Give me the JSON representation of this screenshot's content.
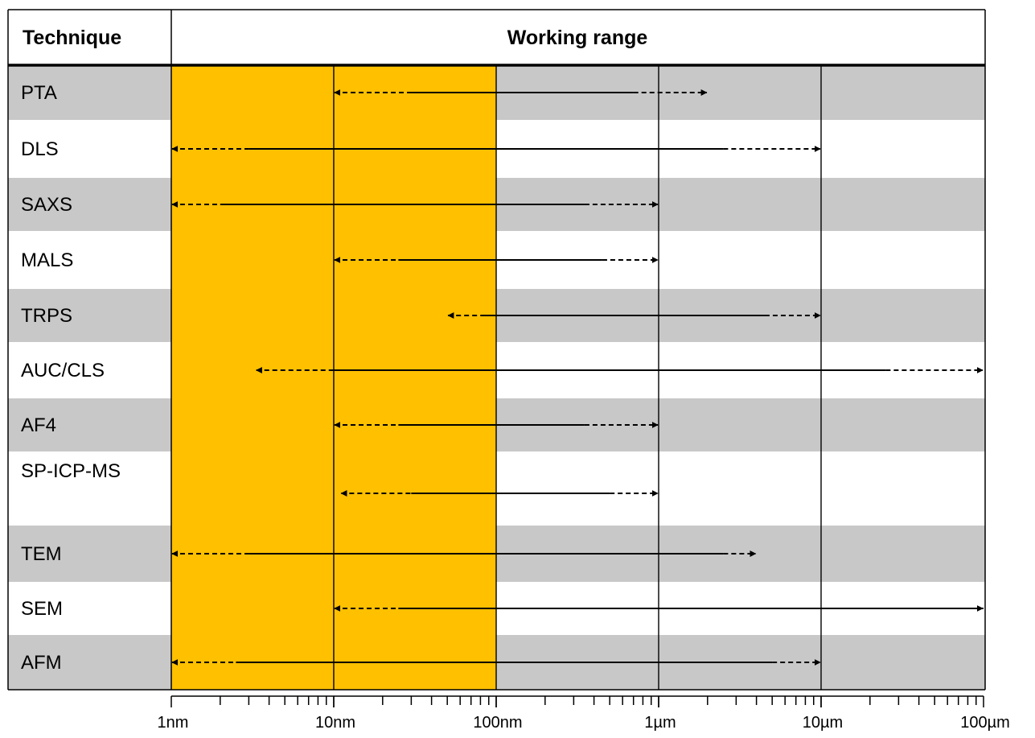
{
  "chart_data": {
    "type": "range",
    "title": "",
    "header": {
      "technique": "Technique",
      "range": "Working range"
    },
    "x_scale": "log",
    "x_unit": "m",
    "xlim": [
      1e-09,
      0.0001
    ],
    "tick_labels": [
      "1nm",
      "10nm",
      "100nm",
      "1µm",
      "10µm",
      "100µm"
    ],
    "highlight_band": {
      "from": 1e-09,
      "to": 1e-07,
      "color": "#FFC000"
    },
    "grid_lines": [
      1e-08,
      1e-07,
      1e-06,
      1e-05
    ],
    "rows": [
      {
        "technique": "PTA",
        "min": 1e-08,
        "max": 2e-06,
        "solid_from": 3e-08,
        "solid_to": 7e-07,
        "shaded": true
      },
      {
        "technique": "DLS",
        "min": 1e-09,
        "max": 1e-05,
        "solid_from": 3e-09,
        "solid_to": 2.5e-06,
        "shaded": false
      },
      {
        "technique": "SAXS",
        "min": 1e-09,
        "max": 1e-06,
        "solid_from": 2e-09,
        "solid_to": 3.5e-07,
        "shaded": true
      },
      {
        "technique": "MALS",
        "min": 1e-08,
        "max": 1e-06,
        "solid_from": 2.5e-08,
        "solid_to": 4.5e-07,
        "shaded": false
      },
      {
        "technique": "TRPS",
        "min": 5e-08,
        "max": 1e-05,
        "solid_from": 8e-08,
        "solid_to": 4.5e-06,
        "shaded": true
      },
      {
        "technique": "AUC/CLS",
        "min": 3.3e-09,
        "max": 0.0001,
        "solid_from": 1e-08,
        "solid_to": 2.5e-05,
        "shaded": false
      },
      {
        "technique": "AF4",
        "min": 1e-08,
        "max": 1e-06,
        "solid_from": 2.5e-08,
        "solid_to": 3.5e-07,
        "shaded": true
      },
      {
        "technique": "SP-ICP-MS",
        "min": 1.1e-08,
        "max": 1e-06,
        "solid_from": 3e-08,
        "solid_to": 5e-07,
        "shaded": false
      },
      {
        "technique": "TEM",
        "min": 1e-09,
        "max": 4e-06,
        "solid_from": 3e-09,
        "solid_to": 2.5e-06,
        "shaded": true
      },
      {
        "technique": "SEM",
        "min": 1e-08,
        "max": 0.0001,
        "solid_from": 2.5e-08,
        "solid_to": 0.0001,
        "shaded": false
      },
      {
        "technique": "AFM",
        "min": 1e-09,
        "max": 1e-05,
        "solid_from": 2.5e-09,
        "solid_to": 5e-06,
        "shaded": true
      }
    ]
  }
}
